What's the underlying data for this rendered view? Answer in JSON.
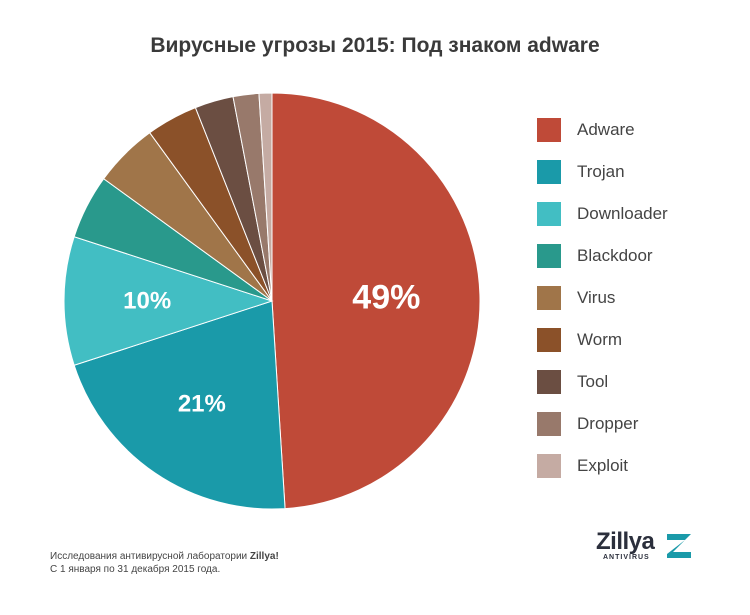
{
  "chart_data": {
    "type": "pie",
    "title": "Вирусные угрозы 2015: Под знаком adware",
    "legend_position": "right",
    "slices": [
      {
        "name": "Adware",
        "value": 49,
        "label": "49%",
        "color": "#bf4a38"
      },
      {
        "name": "Trojan",
        "value": 21,
        "label": "21%",
        "color": "#1a9aa9"
      },
      {
        "name": "Downloader",
        "value": 10,
        "label": "10%",
        "color": "#42bec3"
      },
      {
        "name": "Blackdoor",
        "value": 5,
        "label": "",
        "color": "#29998c"
      },
      {
        "name": "Virus",
        "value": 5,
        "label": "",
        "color": "#a07549"
      },
      {
        "name": "Worm",
        "value": 4,
        "label": "",
        "color": "#8b5129"
      },
      {
        "name": "Tool",
        "value": 3,
        "label": "",
        "color": "#6b4e42"
      },
      {
        "name": "Dropper",
        "value": 2,
        "label": "",
        "color": "#98796b"
      },
      {
        "name": "Exploit",
        "value": 1,
        "label": "",
        "color": "#c5aba3"
      }
    ]
  },
  "footnote": {
    "line1_prefix": "Исследования антивирусной лаборатории ",
    "line1_brand": "Zillya!",
    "line2": "С 1 января по 31 декабря 2015 года."
  },
  "logo": {
    "wordmark": "Zillya",
    "subtitle": "ANTIVIRUS",
    "mark_icon": "zillya-z-logo-icon"
  }
}
